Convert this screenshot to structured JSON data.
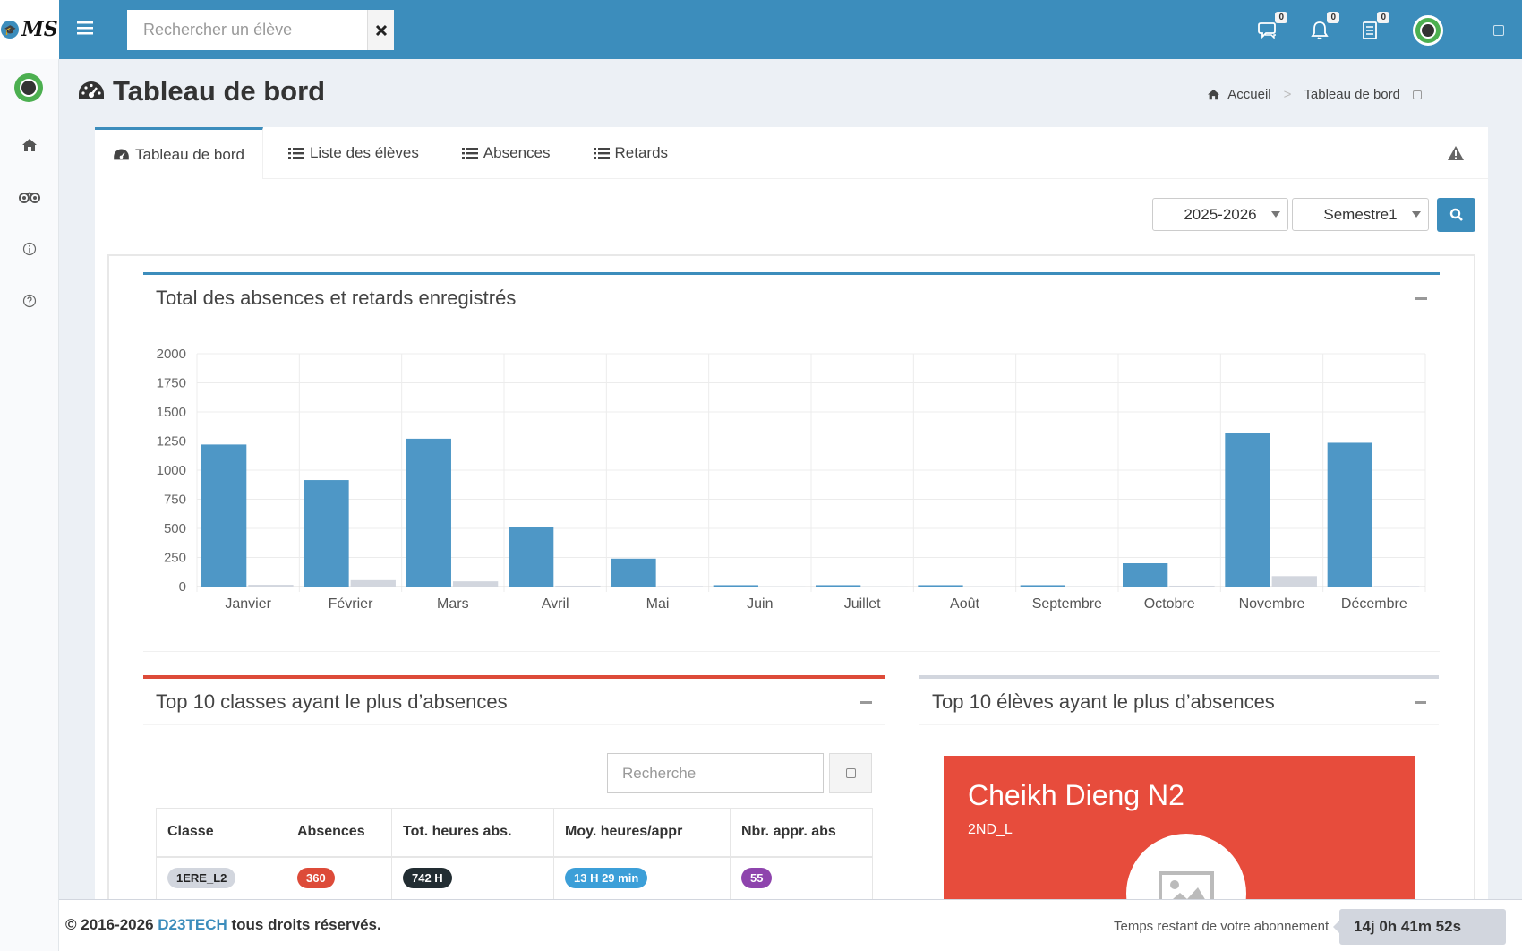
{
  "brand": {
    "logo_text": "MS",
    "logo_icon": "graduation-cap-icon"
  },
  "header": {
    "search_placeholder": "Rechercher un élève",
    "messages_count": "0",
    "notifications_count": "0",
    "tasks_count": "0"
  },
  "page": {
    "title": "Tableau de bord"
  },
  "breadcrumb": {
    "home": "Accueil",
    "current": "Tableau de bord"
  },
  "tabs": [
    {
      "label": "Tableau de bord",
      "icon": "dashboard-icon",
      "active": true
    },
    {
      "label": "Liste des élèves",
      "icon": "list-icon",
      "active": false
    },
    {
      "label": "Absences",
      "icon": "list-icon",
      "active": false
    },
    {
      "label": "Retards",
      "icon": "list-icon",
      "active": false
    }
  ],
  "filters": {
    "year": "2025-2026",
    "semester": "Semestre1"
  },
  "chart_box": {
    "title": "Total des absences et retards enregistrés"
  },
  "chart_data": {
    "type": "bar",
    "categories": [
      "Janvier",
      "Février",
      "Mars",
      "Avril",
      "Mai",
      "Juin",
      "Juillet",
      "Août",
      "Septembre",
      "Octobre",
      "Novembre",
      "Décembre"
    ],
    "series": [
      {
        "values": [
          1220,
          915,
          1270,
          510,
          240,
          12,
          12,
          12,
          12,
          200,
          1320,
          1235
        ],
        "color": "#4e97c6"
      },
      {
        "values": [
          15,
          55,
          45,
          8,
          5,
          3,
          3,
          3,
          3,
          8,
          90,
          5
        ],
        "color": "#d2d6de"
      }
    ],
    "ylim": [
      0,
      2000
    ],
    "yticks": [
      0,
      250,
      500,
      750,
      1000,
      1250,
      1500,
      1750,
      2000
    ],
    "grid": true
  },
  "classes_box": {
    "title": "Top 10 classes ayant le plus d’absences",
    "search_placeholder": "Recherche",
    "columns": [
      "Classe",
      "Absences",
      "Tot. heures abs.",
      "Moy. heures/appr",
      "Nbr. appr. abs"
    ],
    "rows": [
      {
        "classe": "1ERE_L2",
        "absences": "360",
        "heures": "742 H",
        "moyenne": "13 H 29 min",
        "nbr": "55"
      }
    ]
  },
  "students_box": {
    "title": "Top 10 élèves ayant le plus d’absences",
    "student_name": "Cheikh Dieng N2",
    "student_class": "2ND_L"
  },
  "footer": {
    "copyright_prefix": "© 2016-2026 ",
    "company": "D23TECH",
    "copyright_suffix": " tous droits réservés.",
    "subscription_label": "Temps restant de votre abonnement",
    "subscription_timer": "14j 0h 41m 52s"
  },
  "colors": {
    "primary": "#3c8dbc",
    "danger": "#dd4b39",
    "card_red": "#e74c3c"
  }
}
